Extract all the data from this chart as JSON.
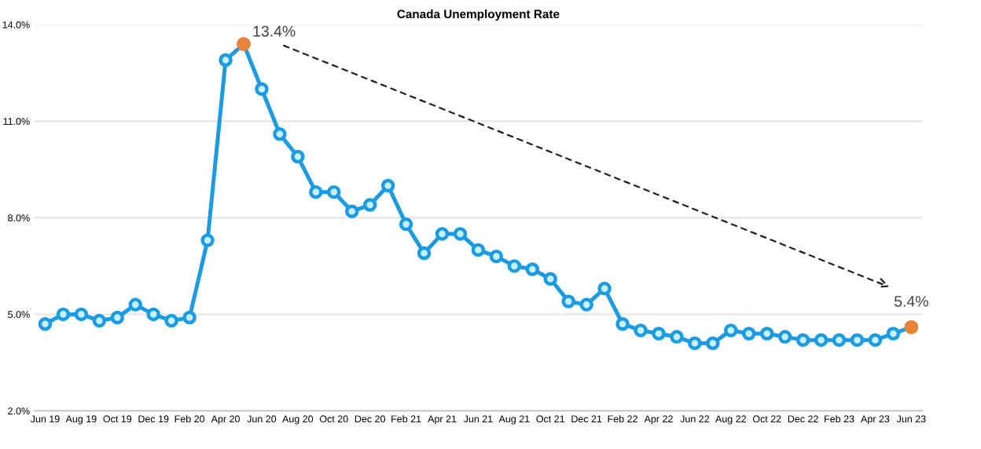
{
  "chart_data": {
    "type": "line",
    "title": "Canada Unemployment Rate",
    "categories": [
      "Jun 19",
      null,
      "Aug 19",
      null,
      "Oct 19",
      null,
      "Dec 19",
      null,
      "Feb 20",
      null,
      "Apr 20",
      null,
      "Jun 20",
      null,
      "Aug 20",
      null,
      "Oct 20",
      null,
      "Dec 20",
      null,
      "Feb 21",
      null,
      "Apr 21",
      null,
      "Jun 21",
      null,
      "Aug 21",
      null,
      "Oct 21",
      null,
      "Dec 21",
      null,
      "Feb 22",
      null,
      "Apr 22",
      null,
      "Jun 22",
      null,
      "Aug 22",
      null,
      "Oct 22",
      null,
      "Dec 22",
      null,
      "Feb 23",
      null,
      "Apr 23",
      null,
      "Jun 23"
    ],
    "series": [
      {
        "color": "#1a9be6",
        "values": [
          4.7,
          5.0,
          5.0,
          4.8,
          4.9,
          5.3,
          5.0,
          4.8,
          4.9,
          7.3,
          12.9,
          13.4,
          12.0,
          10.6,
          9.9,
          8.8,
          8.8,
          8.2,
          8.4,
          9.0,
          7.8,
          6.9,
          7.5,
          7.5,
          7.0,
          6.8,
          6.5,
          6.4,
          6.1,
          5.4,
          5.3,
          5.8,
          4.7,
          4.5,
          4.4,
          4.3,
          4.1,
          4.1,
          4.5,
          4.4,
          4.4,
          4.3,
          4.2,
          4.2,
          4.2,
          4.2,
          4.2,
          4.4,
          4.6
        ],
        "colors": [
          "#1a9be6",
          "#1a9be6",
          "#1a9be6",
          "#1a9be6",
          "#1a9be6",
          "#1a9be6",
          "#1a9be6",
          "#1a9be6",
          "#1a9be6",
          "#1a9be6",
          "#1a9be6",
          "#e8843a",
          "#1a9be6",
          "#1a9be6",
          "#1a9be6",
          "#1a9be6",
          "#1a9be6",
          "#1a9be6",
          "#1a9be6",
          "#1a9be6",
          "#1a9be6",
          "#1a9be6",
          "#1a9be6",
          "#1a9be6",
          "#1a9be6",
          "#1a9be6",
          "#1a9be6",
          "#1a9be6",
          "#1a9be6",
          "#1a9be6",
          "#1a9be6",
          "#1a9be6",
          "#1a9be6",
          "#1a9be6",
          "#1a9be6",
          "#1a9be6",
          "#1a9be6",
          "#1a9be6",
          "#1a9be6",
          "#1a9be6",
          "#1a9be6",
          "#1a9be6",
          "#1a9be6",
          "#1a9be6",
          "#1a9be6",
          "#1a9be6",
          "#1a9be6",
          "#1a9be6",
          "#e8843a"
        ]
      }
    ],
    "annotations": [
      "13.4%",
      "5.4%"
    ],
    "ylim": [
      2.0,
      14.0
    ],
    "yticks": [
      {
        "value": 2.0,
        "label": "2.0%"
      },
      {
        "value": 5.0,
        "label": "5.0%"
      },
      {
        "value": 8.0,
        "label": "8.0%"
      },
      {
        "value": 11.0,
        "label": "11.0%"
      },
      {
        "value": 14.0,
        "label": "14.0%"
      }
    ],
    "grid": "y",
    "marker": "circle",
    "line_style": "solid"
  }
}
